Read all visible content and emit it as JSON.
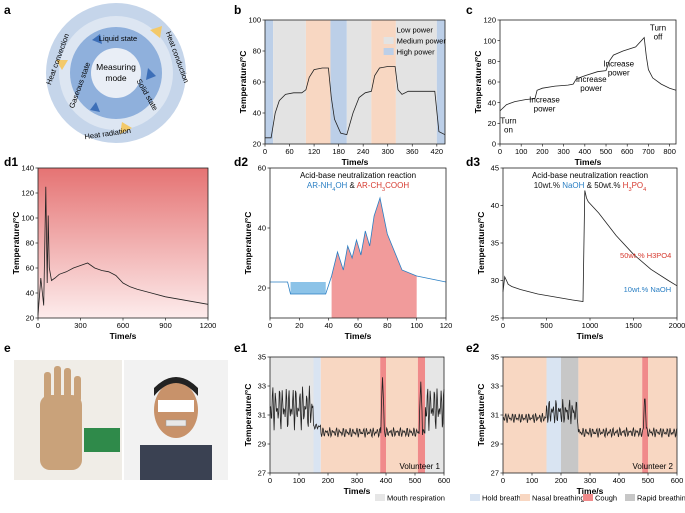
{
  "panel_labels": {
    "a": "a",
    "b": "b",
    "c": "c",
    "d1": "d1",
    "d2": "d2",
    "d3": "d3",
    "e": "e",
    "e1": "e1",
    "e2": "e2"
  },
  "diagram_a": {
    "center": "Measuring\nmode",
    "inner": [
      "Liquid state",
      "Solid state",
      "Gaseous state"
    ],
    "outer": [
      "Heat conduction",
      "Heat radiation",
      "Heat convection"
    ],
    "colors": {
      "outer": "#c5d5ea",
      "inner": "#8fb0dc",
      "center": "#e9eef6",
      "arrowYellow": "#f3c969",
      "arrowBlue": "#3d6fb8"
    }
  },
  "chart_data": [
    {
      "id": "b",
      "type": "line",
      "xlabel": "Time/s",
      "ylabel": "Temperature/°C",
      "xlim": [
        0,
        440
      ],
      "ylim": [
        20,
        100
      ],
      "xticks": [
        0,
        60,
        120,
        180,
        240,
        300,
        360,
        420
      ],
      "yticks": [
        20,
        40,
        60,
        80,
        100
      ],
      "legend": [
        {
          "name": "Low power",
          "color": "#f8d7c2"
        },
        {
          "name": "Medium power",
          "color": "#e3e3e3"
        },
        {
          "name": "High power",
          "color": "#bccfe8"
        }
      ],
      "bands": [
        {
          "x0": 0,
          "x1": 20,
          "level": "high"
        },
        {
          "x0": 20,
          "x1": 100,
          "level": "medium"
        },
        {
          "x0": 100,
          "x1": 160,
          "level": "low"
        },
        {
          "x0": 160,
          "x1": 200,
          "level": "high"
        },
        {
          "x0": 200,
          "x1": 260,
          "level": "medium"
        },
        {
          "x0": 260,
          "x1": 320,
          "level": "low"
        },
        {
          "x0": 320,
          "x1": 420,
          "level": "medium"
        },
        {
          "x0": 420,
          "x1": 440,
          "level": "high"
        }
      ],
      "x": [
        0,
        15,
        25,
        35,
        50,
        70,
        90,
        100,
        108,
        120,
        140,
        155,
        162,
        170,
        185,
        200,
        215,
        230,
        245,
        260,
        268,
        280,
        300,
        318,
        325,
        335,
        350,
        370,
        395,
        415,
        425,
        440
      ],
      "y": [
        24,
        24,
        40,
        48,
        52,
        53,
        53,
        55,
        63,
        68,
        69,
        69,
        50,
        36,
        27,
        26,
        40,
        50,
        53,
        54,
        64,
        69,
        70,
        70,
        55,
        52,
        54,
        54,
        54,
        54,
        28,
        26
      ]
    },
    {
      "id": "c",
      "type": "line",
      "xlabel": "Time/s",
      "ylabel": "Temperature/°C",
      "xlim": [
        0,
        830
      ],
      "ylim": [
        0,
        120
      ],
      "xticks": [
        0,
        100,
        200,
        300,
        400,
        500,
        600,
        700,
        800
      ],
      "yticks": [
        0,
        20,
        40,
        60,
        80,
        100,
        120
      ],
      "annotations": [
        "Turn on",
        "Increase power",
        "Increase power",
        "Increase power",
        "Turn off"
      ],
      "x": [
        0,
        30,
        70,
        120,
        165,
        175,
        200,
        260,
        320,
        345,
        360,
        400,
        460,
        500,
        515,
        535,
        580,
        640,
        680,
        690,
        700,
        720,
        760,
        800,
        830
      ],
      "y": [
        32,
        38,
        41,
        43,
        44,
        52,
        54,
        56,
        57,
        58,
        63,
        66,
        70,
        71,
        80,
        86,
        90,
        94,
        103,
        85,
        72,
        64,
        58,
        54,
        52
      ]
    },
    {
      "id": "d1",
      "type": "line",
      "xlabel": "Time/s",
      "ylabel": "Temperature/°C",
      "xlim": [
        0,
        1200
      ],
      "ylim": [
        20,
        140
      ],
      "xticks": [
        0,
        300,
        600,
        900,
        1200
      ],
      "yticks": [
        20,
        40,
        60,
        80,
        100,
        120,
        140
      ],
      "x": [
        0,
        20,
        40,
        55,
        65,
        72,
        80,
        95,
        120,
        150,
        200,
        250,
        300,
        350,
        400,
        450,
        500,
        550,
        600,
        650,
        700,
        800,
        900,
        1000,
        1100,
        1200
      ],
      "y": [
        22,
        52,
        30,
        125,
        48,
        102,
        60,
        50,
        52,
        55,
        57,
        60,
        62,
        64,
        60,
        58,
        57,
        54,
        48,
        45,
        43,
        40,
        37,
        35,
        33,
        31
      ]
    },
    {
      "id": "d2",
      "type": "line",
      "title": "Acid-base neutralization reaction",
      "subtitle_parts": [
        {
          "t": "AR-NH",
          "c": "#2a7fc4"
        },
        {
          "t": "4",
          "c": "#2a7fc4",
          "sub": true
        },
        {
          "t": "OH",
          "c": "#2a7fc4"
        },
        {
          "t": " & ",
          "c": "#111"
        },
        {
          "t": "AR-CH",
          "c": "#d63a2f"
        },
        {
          "t": "3",
          "c": "#d63a2f",
          "sub": true
        },
        {
          "t": "COOH",
          "c": "#d63a2f"
        }
      ],
      "xlabel": "Time/s",
      "ylabel": "Temperature/°C",
      "xlim": [
        0,
        120
      ],
      "ylim": [
        10,
        60
      ],
      "xticks": [
        0,
        20,
        40,
        60,
        80,
        100,
        120
      ],
      "yticks": [
        20,
        40,
        60
      ],
      "x": [
        0,
        8,
        12,
        14,
        18,
        38,
        42,
        46,
        50,
        53,
        56,
        59,
        62,
        65,
        68,
        71,
        75,
        80,
        90,
        100,
        110,
        120
      ],
      "y": [
        22,
        22,
        22,
        18,
        18,
        18,
        24,
        32,
        26,
        34,
        30,
        36,
        31,
        39,
        34,
        44,
        50,
        38,
        26,
        24,
        23,
        22
      ]
    },
    {
      "id": "d3",
      "type": "line",
      "title": "Acid-base neutralization reaction",
      "subtitle_parts": [
        {
          "t": "10wt.% ",
          "c": "#111"
        },
        {
          "t": "NaOH",
          "c": "#2a7fc4"
        },
        {
          "t": " & 50wt.% ",
          "c": "#111"
        },
        {
          "t": "H",
          "c": "#d63a2f"
        },
        {
          "t": "3",
          "c": "#d63a2f",
          "sub": true
        },
        {
          "t": "PO",
          "c": "#d63a2f"
        },
        {
          "t": "4",
          "c": "#d63a2f",
          "sub": true
        }
      ],
      "legend_text": [
        "50wt.% H3PO4",
        "10wt.% NaOH"
      ],
      "xlabel": "Time/s",
      "ylabel": "Temperature/°C",
      "xlim": [
        0,
        2000
      ],
      "ylim": [
        25,
        45
      ],
      "xticks": [
        0,
        500,
        1000,
        1500,
        2000
      ],
      "yticks": [
        25,
        30,
        35,
        40,
        45
      ],
      "x": [
        0,
        20,
        40,
        60,
        100,
        200,
        400,
        600,
        800,
        920,
        940,
        960,
        980,
        1100,
        1300,
        1500,
        1700,
        1900,
        2000
      ],
      "y": [
        28.5,
        30.5,
        30,
        29.5,
        29.2,
        28.8,
        28.2,
        27.8,
        27.4,
        27.2,
        42,
        41,
        40.5,
        39,
        36,
        33.5,
        31.5,
        30,
        29.3
      ]
    },
    {
      "id": "e1",
      "type": "line",
      "xlabel": "Time/s",
      "ylabel": "Temperature/°C",
      "xlim": [
        0,
        600
      ],
      "ylim": [
        27,
        35
      ],
      "xticks": [
        0,
        100,
        200,
        300,
        400,
        500,
        600
      ],
      "yticks": [
        27,
        29,
        31,
        33,
        35
      ],
      "annotation": "Volunteer 1",
      "bands": [
        {
          "x0": 0,
          "x1": 150,
          "kind": "mouth"
        },
        {
          "x0": 150,
          "x1": 175,
          "kind": "hold"
        },
        {
          "x0": 175,
          "x1": 380,
          "kind": "nasal"
        },
        {
          "x0": 380,
          "x1": 400,
          "kind": "cough"
        },
        {
          "x0": 400,
          "x1": 510,
          "kind": "nasal"
        },
        {
          "x0": 510,
          "x1": 535,
          "kind": "cough"
        },
        {
          "x0": 535,
          "x1": 600,
          "kind": "mouth"
        }
      ]
    },
    {
      "id": "e2",
      "type": "line",
      "xlabel": "Time/s",
      "ylabel": "Temperature/°C",
      "xlim": [
        0,
        600
      ],
      "ylim": [
        27,
        35
      ],
      "xticks": [
        0,
        100,
        200,
        300,
        400,
        500,
        600
      ],
      "yticks": [
        27,
        29,
        31,
        33,
        35
      ],
      "annotation": "Volunteer 2",
      "bands": [
        {
          "x0": 0,
          "x1": 150,
          "kind": "nasal"
        },
        {
          "x0": 150,
          "x1": 200,
          "kind": "hold"
        },
        {
          "x0": 200,
          "x1": 260,
          "kind": "rapid"
        },
        {
          "x0": 260,
          "x1": 480,
          "kind": "nasal"
        },
        {
          "x0": 480,
          "x1": 500,
          "kind": "cough"
        },
        {
          "x0": 500,
          "x1": 600,
          "kind": "nasal"
        }
      ]
    }
  ],
  "e_legend": [
    {
      "name": "Mouth respiration",
      "color": "#e6e6e6"
    },
    {
      "name": "Hold breath",
      "color": "#d9e4f2"
    },
    {
      "name": "Nasal breathing",
      "color": "#f8d7c2"
    },
    {
      "name": "Cough",
      "color": "#f08a8a"
    },
    {
      "name": "Rapid breathing",
      "color": "#c7c7c7"
    }
  ]
}
